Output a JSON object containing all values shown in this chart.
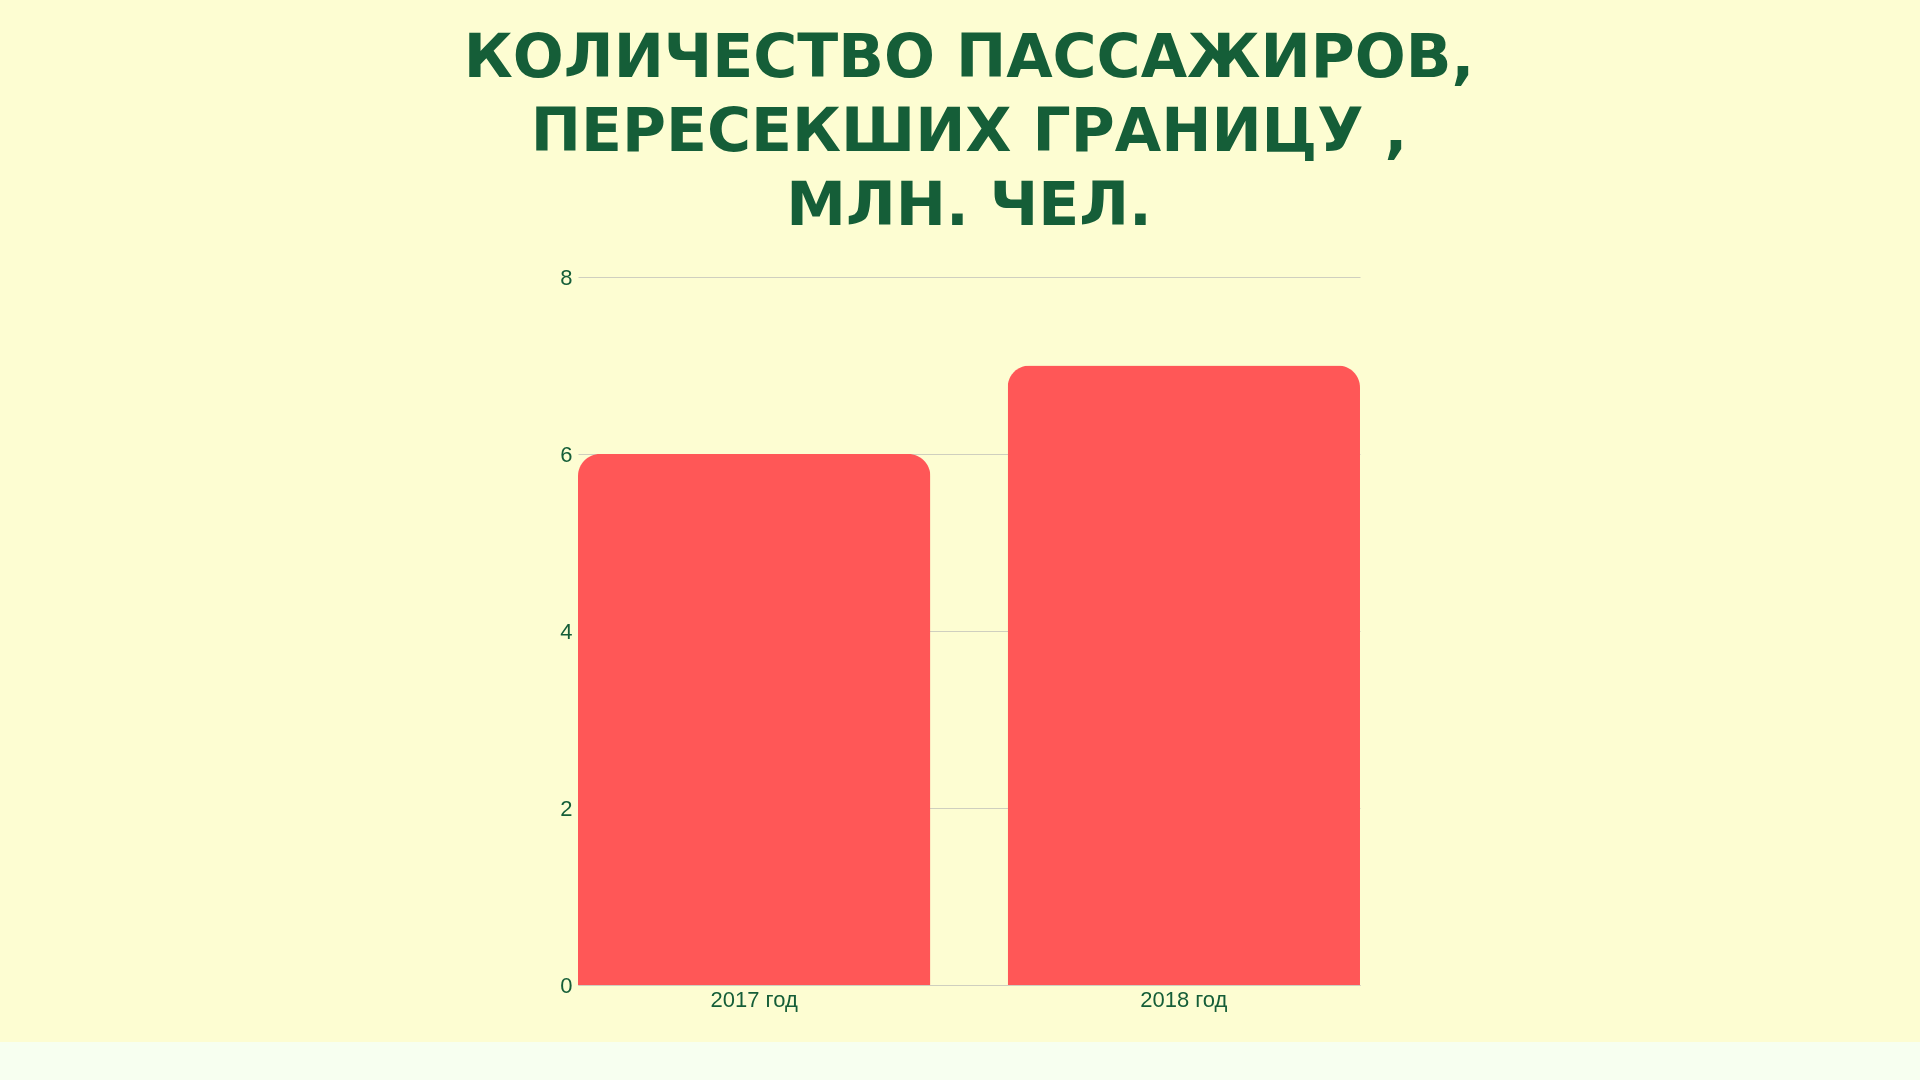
{
  "chart_data": {
    "type": "bar",
    "title": "КОЛИЧЕСТВО ПАССАЖИРОВ,\nПЕРЕСЕКШИХ ГРАНИЦУ ,\nМЛН. ЧЕЛ.",
    "categories": [
      "2017 год",
      "2018 год"
    ],
    "values": [
      6,
      7
    ],
    "color": "#ff5757",
    "ylim": [
      0,
      8
    ],
    "yticks": [
      0,
      2,
      4,
      6,
      8
    ],
    "grid": "y"
  }
}
